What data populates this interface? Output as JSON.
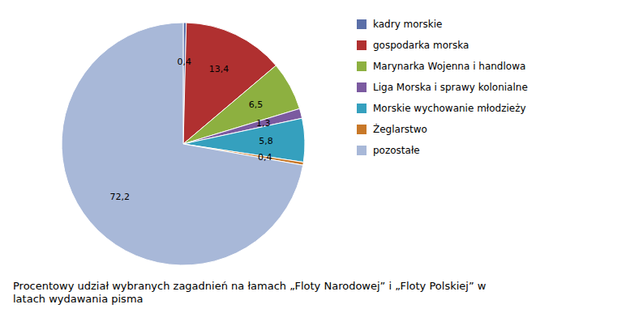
{
  "chart_data": {
    "type": "pie",
    "title": "Procentowy udział wybranych zagadnień na łamach „Floty Narodowej” i „Floty Polskiej” w\nlatach wydawania pisma",
    "categories": [
      "kadry morskie",
      "gospodarka morska",
      "Marynarka Wojenna i handlowa",
      "Liga Morska i sprawy kolonialne",
      "Morskie wychowanie młodzieży",
      "Żeglarstwo",
      "pozostałe"
    ],
    "values": [
      0.4,
      13.4,
      6.5,
      1.3,
      5.8,
      0.4,
      72.2
    ],
    "value_labels": [
      "0,4",
      "13,4",
      "6,5",
      "1,3",
      "5,8",
      "0,4",
      "72,2"
    ],
    "colors": [
      "#5b6fa8",
      "#b03030",
      "#8db040",
      "#7b5aa0",
      "#35a0be",
      "#c87828",
      "#a8b8d8"
    ],
    "data_labels": true,
    "legend": "right"
  }
}
